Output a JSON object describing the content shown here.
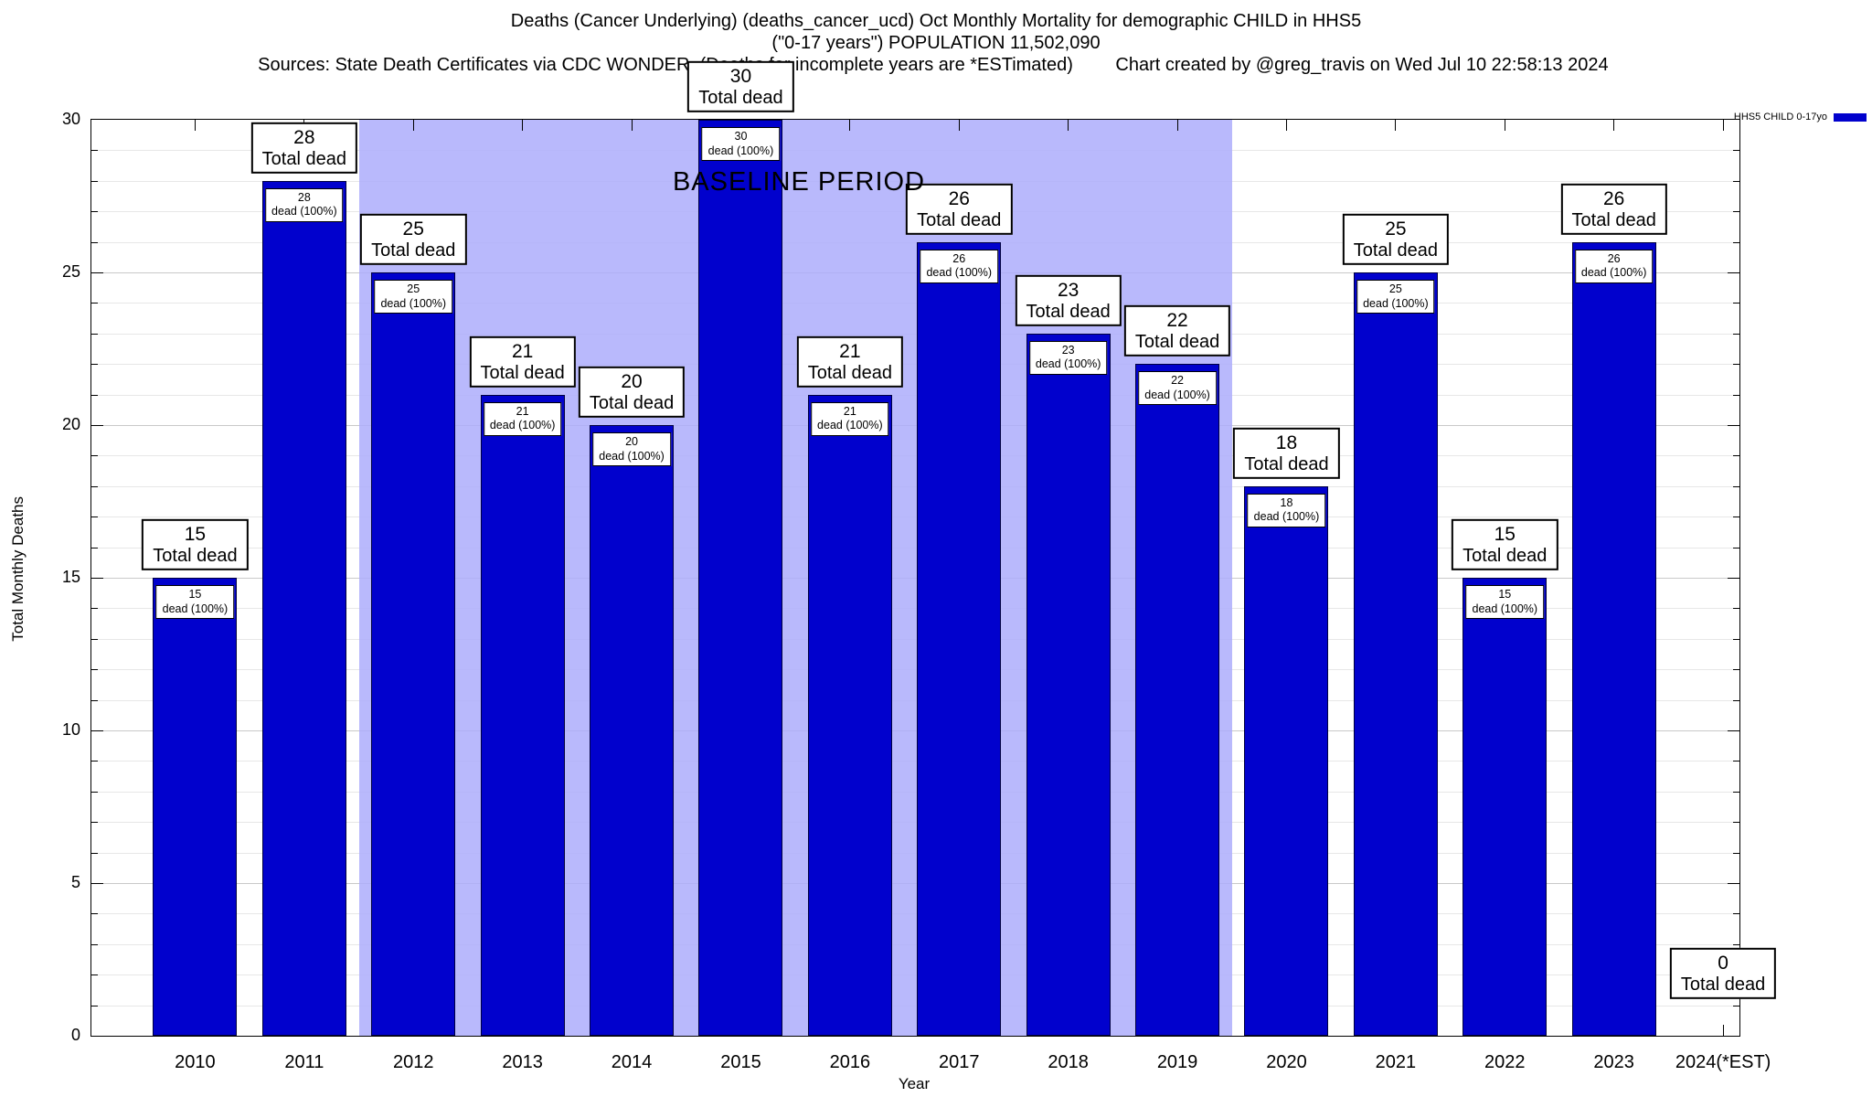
{
  "header": {
    "title_line1": "Deaths (Cancer Underlying) (deaths_cancer_ucd) Oct Monthly Mortality for demographic CHILD in HHS5",
    "title_line2": "(\"0-17 years\") POPULATION 11,502,090",
    "sources": "Sources: State Death Certificates via CDC WONDER. (Deaths for incomplete years are *ESTimated)",
    "credit": "Chart created by @greg_travis on Wed Jul 10 22:58:13 2024"
  },
  "chart_data": {
    "type": "bar",
    "title": "Deaths (Cancer Underlying) (deaths_cancer_ucd) Oct Monthly Mortality for demographic CHILD in HHS5 (\"0-17 years\") POPULATION 11,502,090",
    "xlabel": "Year",
    "ylabel": "Total Monthly Deaths",
    "ylim": [
      0,
      30
    ],
    "yticks": [
      0,
      5,
      10,
      15,
      20,
      25,
      30
    ],
    "grid": true,
    "legend_position": "top-right",
    "categories": [
      "2010",
      "2011",
      "2012",
      "2013",
      "2014",
      "2015",
      "2016",
      "2017",
      "2018",
      "2019",
      "2020",
      "2021",
      "2022",
      "2023",
      "2024(*EST)"
    ],
    "values": [
      15,
      28,
      25,
      21,
      20,
      30,
      21,
      26,
      23,
      22,
      18,
      25,
      15,
      26,
      0
    ],
    "bar_top_label_suffix": "Total dead",
    "bar_inner_label_suffix": "dead (100%)",
    "baseline_region": {
      "label": "BASELINE PERIOD",
      "from_year": 2011.5,
      "to_year": 2019.5
    },
    "legend": {
      "label": "HHS5 CHILD 0-17yo"
    },
    "colors": {
      "bar": "#0101cd",
      "bar_border": "#000040",
      "baseline_region": "#adadfb",
      "grid_minor": "#e7e7e7",
      "grid_major": "#c9c9c9"
    }
  }
}
